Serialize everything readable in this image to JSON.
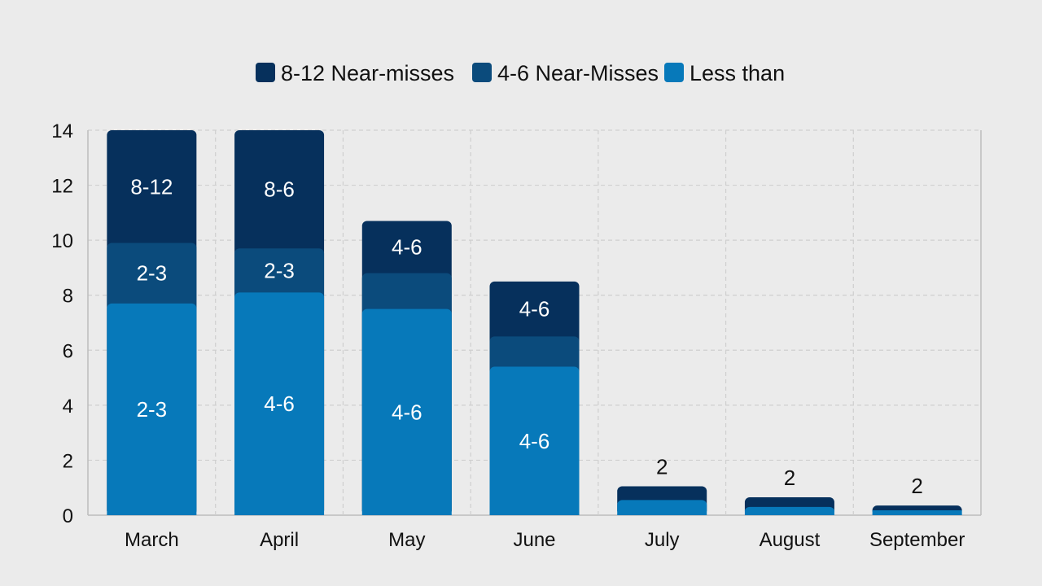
{
  "chart_data": {
    "type": "bar",
    "stacked": true,
    "categories": [
      "March",
      "April",
      "May",
      "June",
      "July",
      "August",
      "September"
    ],
    "series": [
      {
        "name": "Less than",
        "color": "#0779ba",
        "values": [
          7.7,
          8.1,
          7.5,
          5.4,
          0.55,
          0.3,
          0.1
        ],
        "labels": [
          "2-3",
          "4-6",
          "4-6",
          "4-6",
          "",
          "",
          ""
        ]
      },
      {
        "name": "4-6 Near-Misses",
        "color": "#0b4b7c",
        "values": [
          2.2,
          1.6,
          1.3,
          1.1,
          0,
          0,
          0
        ],
        "labels": [
          "2-3",
          "2-3",
          "",
          "",
          "",
          "",
          ""
        ]
      },
      {
        "name": "8-12 Near-misses",
        "color": "#06305c",
        "values": [
          4.1,
          4.3,
          1.9,
          2.0,
          0.5,
          0.35,
          0.25
        ],
        "labels": [
          "8-12",
          "8-6",
          "4-6",
          "4-6",
          "",
          "",
          ""
        ]
      }
    ],
    "top_labels": [
      "",
      "",
      "",
      "",
      "2",
      "2",
      "2"
    ],
    "legend": {
      "position": "top-center",
      "entries": [
        {
          "name": "8-12 Near-misses",
          "color": "#06305c"
        },
        {
          "name": "4-6 Near-Misses",
          "color": "#0b4b7c"
        },
        {
          "name": "Less than",
          "color": "#0779ba"
        }
      ]
    },
    "y_ticks": [
      "0",
      "2",
      "4",
      "6",
      "8",
      "10",
      "12",
      "14"
    ],
    "ylim": [
      0,
      14
    ],
    "grid": true,
    "title": "",
    "xlabel": "",
    "ylabel": ""
  }
}
